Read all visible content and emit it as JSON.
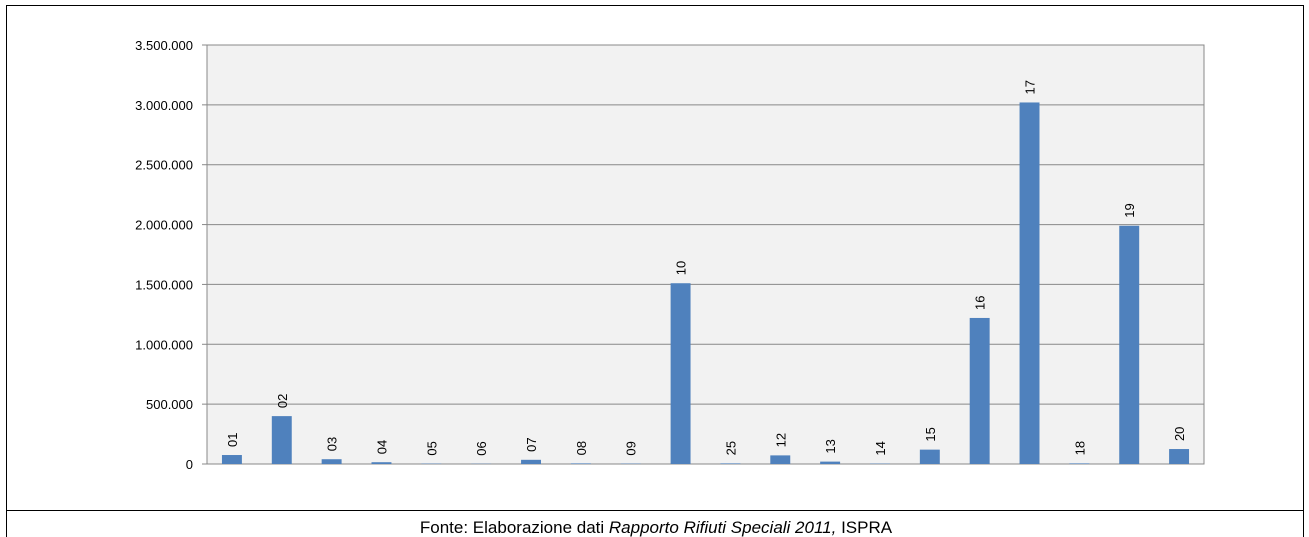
{
  "chart_data": {
    "type": "bar",
    "categories": [
      "01",
      "02",
      "03",
      "04",
      "05",
      "06",
      "07",
      "08",
      "09",
      "10",
      "25",
      "12",
      "13",
      "14",
      "15",
      "16",
      "17",
      "18",
      "19",
      "20"
    ],
    "values": [
      75000,
      400000,
      40000,
      15000,
      3000,
      2000,
      35000,
      5000,
      3000,
      1510000,
      5000,
      72000,
      20000,
      3000,
      120000,
      1220000,
      3020000,
      5000,
      1990000,
      125000
    ],
    "color": "#4f81bd",
    "ylim": [
      0,
      3500000
    ],
    "yticks": [
      0,
      {
        "value": 500000,
        "label": "500.000"
      },
      {
        "value": 1000000,
        "label": "1.000.000"
      },
      {
        "value": 1500000,
        "label": "1.500.000"
      },
      {
        "value": 2000000,
        "label": "2.000.000"
      },
      {
        "value": 2500000,
        "label": "2.500.000"
      },
      {
        "value": 3000000,
        "label": "3.000.000"
      },
      {
        "value": 3500000,
        "label": "3.500.000"
      }
    ],
    "grid": true,
    "source": [
      "Fonte: Elaborazione dati ",
      "Rapporto Rifiuti Speciali 2011,",
      " ISPRA"
    ]
  }
}
